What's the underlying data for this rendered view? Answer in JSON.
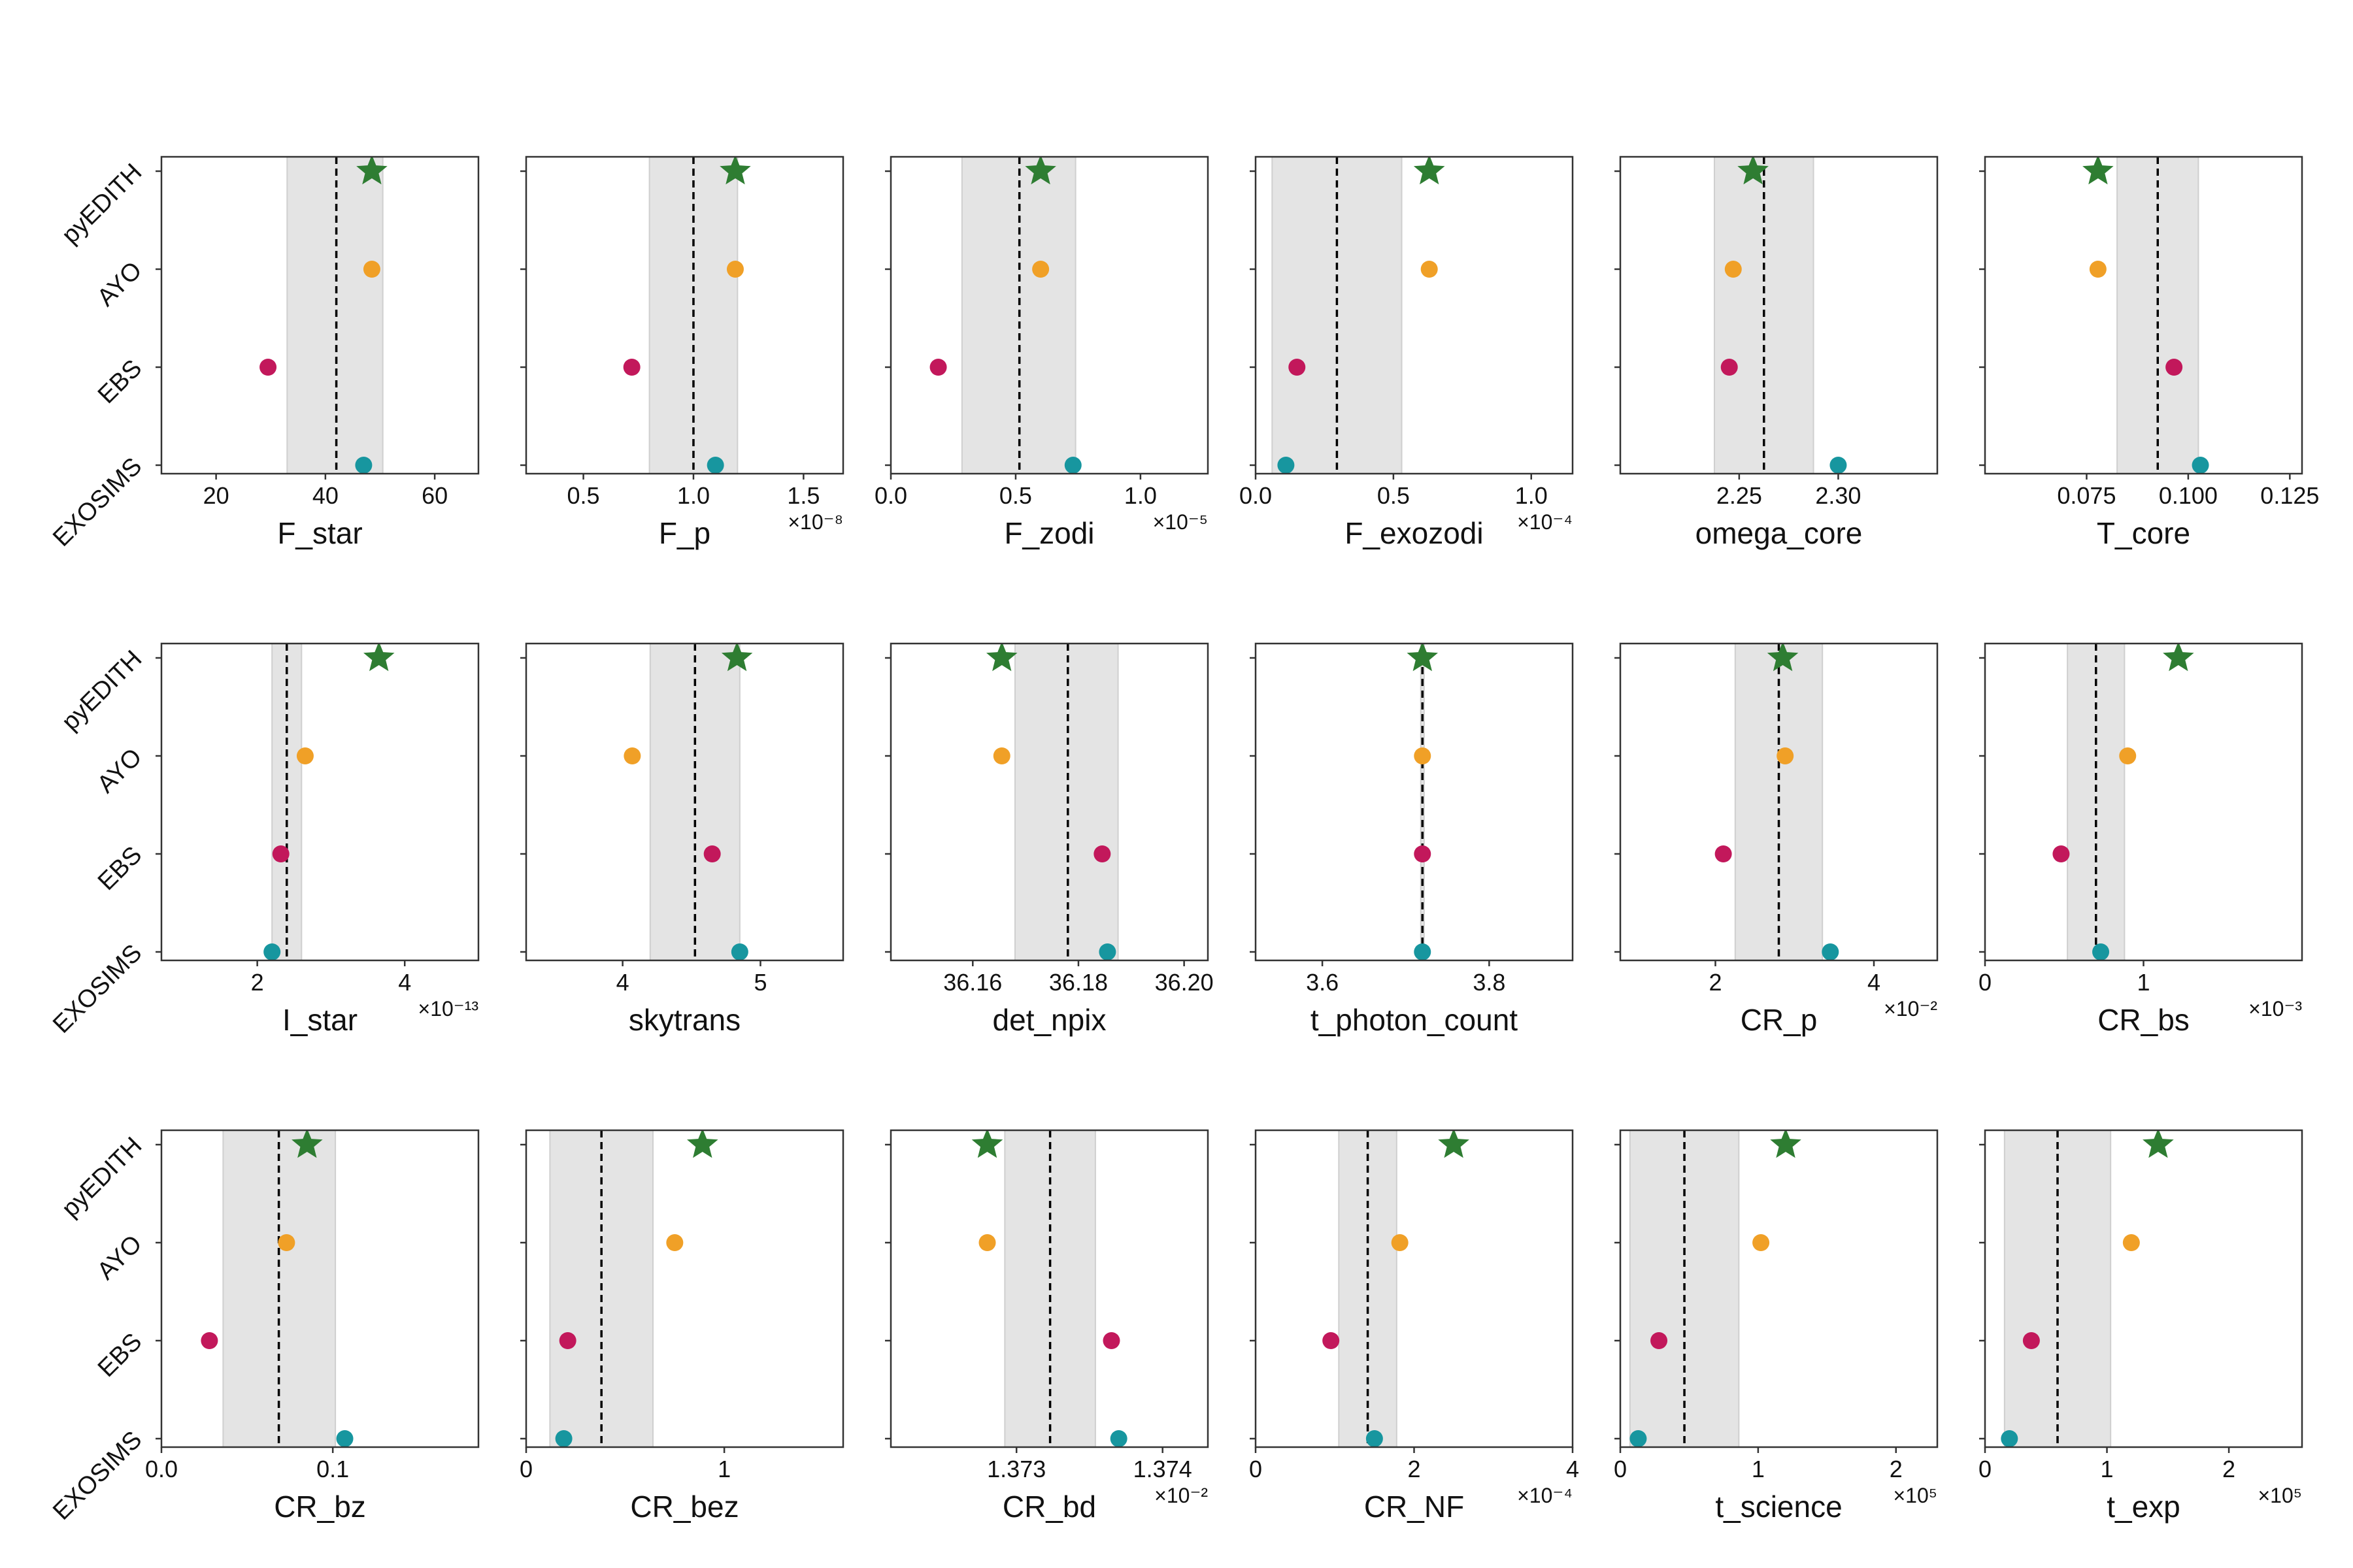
{
  "colors": {
    "pyEDITH": "#2e7d32",
    "AYO": "#f0a027",
    "EBS": "#c2185b",
    "EXOSIMS": "#17969f",
    "band": "#e4e4e4",
    "median_line": "#000000",
    "frame": "#333333"
  },
  "markers": {
    "pyEDITH": "star",
    "AYO": "circle",
    "EBS": "circle",
    "EXOSIMS": "circle"
  },
  "y_categories": [
    "pyEDITH",
    "AYO",
    "EBS",
    "EXOSIMS"
  ],
  "chart_data": [
    {
      "type": "scatter",
      "xlabel": "F_star",
      "exponent": "",
      "xlim": [
        10,
        68
      ],
      "xticks": [
        20,
        40,
        60
      ],
      "tick_labels": [
        "20",
        "40",
        "60"
      ],
      "band": [
        33,
        50.5
      ],
      "median": 42,
      "values": {
        "pyEDITH": 48.5,
        "AYO": 48.5,
        "EBS": 29.5,
        "EXOSIMS": 47
      }
    },
    {
      "type": "scatter",
      "xlabel": "F_p",
      "exponent": "×10⁻⁸",
      "xlim": [
        0.24,
        1.68
      ],
      "xticks": [
        0.5,
        1.0,
        1.5
      ],
      "tick_labels": [
        "0.5",
        "1.0",
        "1.5"
      ],
      "band": [
        0.8,
        1.2
      ],
      "median": 1.0,
      "values": {
        "pyEDITH": 1.19,
        "AYO": 1.19,
        "EBS": 0.72,
        "EXOSIMS": 1.1
      }
    },
    {
      "type": "scatter",
      "xlabel": "F_zodi",
      "exponent": "×10⁻⁵",
      "xlim": [
        0.0,
        1.27
      ],
      "xticks": [
        0.0,
        0.5,
        1.0
      ],
      "tick_labels": [
        "0.0",
        "0.5",
        "1.0"
      ],
      "band": [
        0.285,
        0.74
      ],
      "median": 0.515,
      "values": {
        "pyEDITH": 0.6,
        "AYO": 0.6,
        "EBS": 0.19,
        "EXOSIMS": 0.73
      }
    },
    {
      "type": "scatter",
      "xlabel": "F_exozodi",
      "exponent": "×10⁻⁴",
      "xlim": [
        0.0,
        1.15
      ],
      "xticks": [
        0.0,
        0.5,
        1.0
      ],
      "tick_labels": [
        "0.0",
        "0.5",
        "1.0"
      ],
      "band": [
        0.06,
        0.53
      ],
      "median": 0.295,
      "values": {
        "pyEDITH": 0.63,
        "AYO": 0.63,
        "EBS": 0.15,
        "EXOSIMS": 0.11
      }
    },
    {
      "type": "scatter",
      "xlabel": "omega_core",
      "exponent": "",
      "xlim": [
        2.19,
        2.35
      ],
      "xticks": [
        2.25,
        2.3
      ],
      "tick_labels": [
        "2.25",
        "2.30"
      ],
      "band": [
        2.2375,
        2.2875
      ],
      "median": 2.2625,
      "values": {
        "pyEDITH": 2.257,
        "AYO": 2.247,
        "EBS": 2.245,
        "EXOSIMS": 2.3
      }
    },
    {
      "type": "scatter",
      "xlabel": "T_core",
      "exponent": "",
      "xlim": [
        0.05,
        0.128
      ],
      "xticks": [
        0.075,
        0.1,
        0.125
      ],
      "tick_labels": [
        "0.075",
        "0.100",
        "0.125"
      ],
      "band": [
        0.0825,
        0.1025
      ],
      "median": 0.0925,
      "values": {
        "pyEDITH": 0.0778,
        "AYO": 0.0778,
        "EBS": 0.0965,
        "EXOSIMS": 0.103
      }
    },
    {
      "type": "scatter",
      "xlabel": "I_star",
      "exponent": "×10⁻¹³",
      "xlim": [
        0.7,
        5.0
      ],
      "xticks": [
        2,
        4
      ],
      "tick_labels": [
        "2",
        "4"
      ],
      "band": [
        2.2,
        2.6
      ],
      "median": 2.4,
      "values": {
        "pyEDITH": 3.65,
        "AYO": 2.65,
        "EBS": 2.32,
        "EXOSIMS": 2.2
      }
    },
    {
      "type": "scatter",
      "xlabel": "skytrans",
      "exponent": "",
      "xlim": [
        3.3,
        5.6
      ],
      "xticks": [
        4,
        5
      ],
      "tick_labels": [
        "4",
        "5"
      ],
      "band": [
        4.2,
        4.85
      ],
      "median": 4.525,
      "values": {
        "pyEDITH": 4.83,
        "AYO": 4.07,
        "EBS": 4.65,
        "EXOSIMS": 4.85
      }
    },
    {
      "type": "scatter",
      "xlabel": "det_npix",
      "exponent": "",
      "xlim": [
        36.1445,
        36.2045
      ],
      "xticks": [
        36.16,
        36.18,
        36.2
      ],
      "tick_labels": [
        "36.16",
        "36.18",
        "36.20"
      ],
      "band": [
        36.168,
        36.1875
      ],
      "median": 36.178,
      "values": {
        "pyEDITH": 36.1655,
        "AYO": 36.1655,
        "EBS": 36.1845,
        "EXOSIMS": 36.1855
      }
    },
    {
      "type": "scatter",
      "xlabel": "t_photon_count",
      "exponent": "",
      "xlim": [
        3.52,
        3.9
      ],
      "xticks": [
        3.6,
        3.8
      ],
      "tick_labels": [
        "3.6",
        "3.8"
      ],
      "band": [
        3.718,
        3.722
      ],
      "median": 3.72,
      "values": {
        "pyEDITH": 3.72,
        "AYO": 3.72,
        "EBS": 3.72,
        "EXOSIMS": 3.72
      }
    },
    {
      "type": "scatter",
      "xlabel": "CR_p",
      "exponent": "×10⁻²",
      "xlim": [
        0.8,
        4.8
      ],
      "xticks": [
        2,
        4
      ],
      "tick_labels": [
        "2",
        "4"
      ],
      "band": [
        2.25,
        3.35
      ],
      "median": 2.8,
      "values": {
        "pyEDITH": 2.85,
        "AYO": 2.88,
        "EBS": 2.1,
        "EXOSIMS": 3.45
      }
    },
    {
      "type": "scatter",
      "xlabel": "CR_bs",
      "exponent": "×10⁻³",
      "xlim": [
        0.0,
        2.0
      ],
      "xticks": [
        0,
        1
      ],
      "tick_labels": [
        "0",
        "1"
      ],
      "band": [
        0.52,
        0.88
      ],
      "median": 0.7,
      "values": {
        "pyEDITH": 1.22,
        "AYO": 0.9,
        "EBS": 0.48,
        "EXOSIMS": 0.73
      }
    },
    {
      "type": "scatter",
      "xlabel": "CR_bz",
      "exponent": "",
      "xlim": [
        0.0,
        0.185
      ],
      "xticks": [
        0.0,
        0.1
      ],
      "tick_labels": [
        "0.0",
        "0.1"
      ],
      "band": [
        0.036,
        0.1015
      ],
      "median": 0.0685,
      "values": {
        "pyEDITH": 0.085,
        "AYO": 0.073,
        "EBS": 0.028,
        "EXOSIMS": 0.107
      }
    },
    {
      "type": "scatter",
      "xlabel": "CR_bez",
      "exponent": "",
      "xlim": [
        0.0,
        1.6
      ],
      "xticks": [
        0,
        1
      ],
      "tick_labels": [
        "0",
        "1"
      ],
      "band": [
        0.12,
        0.64
      ],
      "median": 0.38,
      "values": {
        "pyEDITH": 0.89,
        "AYO": 0.75,
        "EBS": 0.21,
        "EXOSIMS": 0.19
      }
    },
    {
      "type": "scatter",
      "xlabel": "CR_bd",
      "exponent": "×10⁻²",
      "xlim": [
        1.37214,
        1.37431
      ],
      "xticks": [
        1.373,
        1.374
      ],
      "tick_labels": [
        "1.373",
        "1.374"
      ],
      "band": [
        1.37292,
        1.37354
      ],
      "median": 1.37323,
      "values": {
        "pyEDITH": 1.3728,
        "AYO": 1.3728,
        "EBS": 1.37365,
        "EXOSIMS": 1.3737
      }
    },
    {
      "type": "scatter",
      "xlabel": "CR_NF",
      "exponent": "×10⁻⁴",
      "xlim": [
        0.0,
        4.0
      ],
      "xticks": [
        0,
        2,
        4
      ],
      "tick_labels": [
        "0",
        "2",
        "4"
      ],
      "band": [
        1.05,
        1.78
      ],
      "median": 1.415,
      "values": {
        "pyEDITH": 2.5,
        "AYO": 1.82,
        "EBS": 0.95,
        "EXOSIMS": 1.5
      }
    },
    {
      "type": "scatter",
      "xlabel": "t_science",
      "exponent": "×10⁵",
      "xlim": [
        0.0,
        2.3
      ],
      "xticks": [
        0,
        1,
        2
      ],
      "tick_labels": [
        "0",
        "1",
        "2"
      ],
      "band": [
        0.07,
        0.86
      ],
      "median": 0.465,
      "values": {
        "pyEDITH": 1.2,
        "AYO": 1.02,
        "EBS": 0.28,
        "EXOSIMS": 0.13
      }
    },
    {
      "type": "scatter",
      "xlabel": "t_exp",
      "exponent": "×10⁵",
      "xlim": [
        0.0,
        2.6
      ],
      "xticks": [
        0,
        1,
        2
      ],
      "tick_labels": [
        "0",
        "1",
        "2"
      ],
      "band": [
        0.16,
        1.03
      ],
      "median": 0.595,
      "values": {
        "pyEDITH": 1.42,
        "AYO": 1.2,
        "EBS": 0.38,
        "EXOSIMS": 0.2
      }
    }
  ]
}
